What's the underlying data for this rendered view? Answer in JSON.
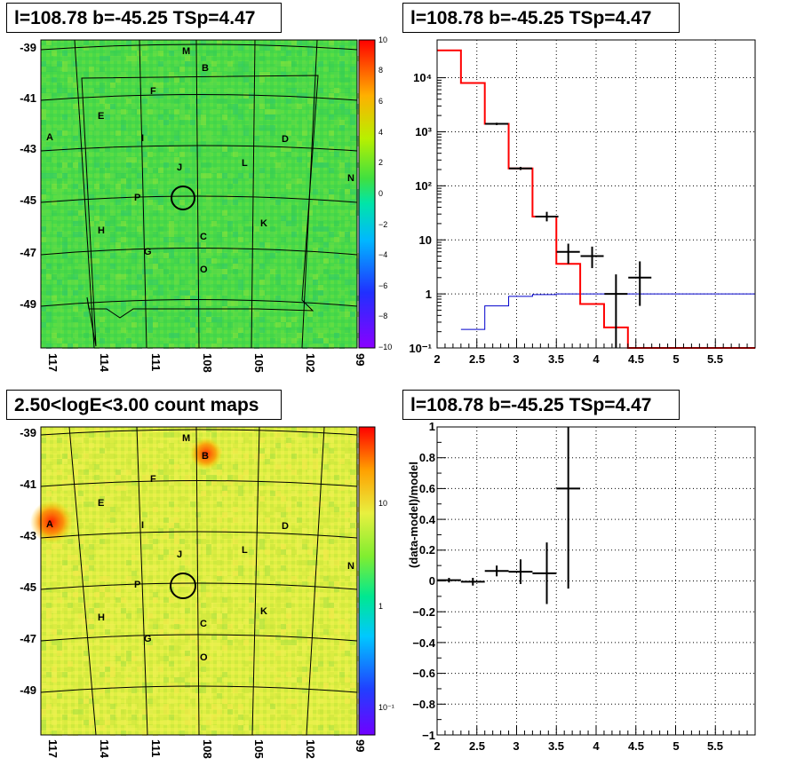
{
  "panels": {
    "map_top_title": "l=108.78 b=-45.25 TSp=4.47",
    "spectrum_title": "l=108.78 b=-45.25 TSp=4.47",
    "map_bottom_title": "2.50<logE<3.00 count maps",
    "residual_title": "l=108.78 b=-45.25 TSp=4.47"
  },
  "maps": {
    "lon_ticks": [
      "117",
      "114",
      "111",
      "108",
      "105",
      "102",
      "99"
    ],
    "lat_ticks": [
      "-39",
      "-41",
      "-43",
      "-45",
      "-47",
      "-49"
    ],
    "source_labels": [
      "M",
      "B",
      "F",
      "E",
      "A",
      "I",
      "D",
      "J",
      "L",
      "N",
      "P",
      "H",
      "K",
      "C",
      "G",
      "O"
    ],
    "top_colorbar_ticks": [
      "10",
      "8",
      "6",
      "4",
      "2",
      "0",
      "−2",
      "−4",
      "−6",
      "−8",
      "−10"
    ],
    "bottom_colorbar_ticks": [
      "10",
      "1",
      "10⁻¹"
    ],
    "colors": {
      "top_background": "#49d949",
      "bottom_background": "#dfef43"
    }
  },
  "chart_data": [
    {
      "type": "line",
      "title": "l=108.78 b=-45.25 TSp=4.47",
      "xlabel": "",
      "ylabel": "",
      "yscale": "log",
      "xlim": [
        2,
        6
      ],
      "ylim": [
        0.1,
        50000
      ],
      "x_ticks": [
        "2",
        "2.5",
        "3",
        "3.5",
        "4",
        "4.5",
        "5",
        "5.5"
      ],
      "y_ticks": [
        "10⁻¹",
        "1",
        "10",
        "10²",
        "10³",
        "10⁴"
      ],
      "series": [
        {
          "role": "data points",
          "color": "#000000",
          "points": [
            {
              "x": 2.75,
              "y": 1400,
              "ylo": 1330,
              "yhi": 1470
            },
            {
              "x": 3.05,
              "y": 210,
              "ylo": 196,
              "yhi": 224
            },
            {
              "x": 3.38,
              "y": 27,
              "ylo": 22,
              "yhi": 33
            },
            {
              "x": 3.65,
              "y": 6,
              "ylo": 3.6,
              "yhi": 8.5
            },
            {
              "x": 3.95,
              "y": 5,
              "ylo": 3,
              "yhi": 7.5
            },
            {
              "x": 4.25,
              "y": 1,
              "ylo": 0.1,
              "yhi": 2.3
            },
            {
              "x": 4.55,
              "y": 2,
              "ylo": 0.6,
              "yhi": 4
            }
          ]
        },
        {
          "role": "total model",
          "color": "#ff0000",
          "edges": [
            2,
            2.3,
            2.6,
            2.9,
            3.2,
            3.5,
            3.8,
            4.1,
            4.4,
            6
          ],
          "values": [
            32000,
            8000,
            1400,
            210,
            27,
            3.6,
            0.65,
            0.24,
            0.1
          ]
        },
        {
          "role": "point source model",
          "color": "#0000cc",
          "edges": [
            2.3,
            2.6,
            2.9,
            3.2,
            3.5,
            6
          ],
          "values": [
            0.22,
            0.6,
            0.9,
            0.97,
            1.0
          ]
        }
      ]
    },
    {
      "type": "scatter",
      "title": "l=108.78 b=-45.25 TSp=4.47",
      "xlabel": "",
      "ylabel": "(data-model)/model",
      "xlim": [
        2,
        6
      ],
      "ylim": [
        -1,
        1
      ],
      "x_ticks": [
        "2",
        "2.5",
        "3",
        "3.5",
        "4",
        "4.5",
        "5",
        "5.5"
      ],
      "y_ticks": [
        "−1",
        "−0.8",
        "−0.6",
        "−0.4",
        "−0.2",
        "0",
        "0.2",
        "0.4",
        "0.6",
        "0.8",
        "1"
      ],
      "series": [
        {
          "role": "residuals",
          "color": "#000000",
          "points": [
            {
              "x": 2.15,
              "y": 0.005,
              "xlo": 2.0,
              "xhi": 2.3,
              "ylo": -0.01,
              "yhi": 0.02
            },
            {
              "x": 2.45,
              "y": -0.005,
              "xlo": 2.3,
              "xhi": 2.6,
              "ylo": -0.03,
              "yhi": 0.02
            },
            {
              "x": 2.75,
              "y": 0.065,
              "xlo": 2.6,
              "xhi": 2.9,
              "ylo": 0.03,
              "yhi": 0.1
            },
            {
              "x": 3.05,
              "y": 0.06,
              "xlo": 2.9,
              "xhi": 3.2,
              "ylo": -0.02,
              "yhi": 0.14
            },
            {
              "x": 3.38,
              "y": 0.05,
              "xlo": 3.2,
              "xhi": 3.5,
              "ylo": -0.15,
              "yhi": 0.25
            },
            {
              "x": 3.65,
              "y": 0.6,
              "xlo": 3.5,
              "xhi": 3.8,
              "ylo": -0.05,
              "yhi": 1.0
            }
          ]
        }
      ]
    }
  ]
}
